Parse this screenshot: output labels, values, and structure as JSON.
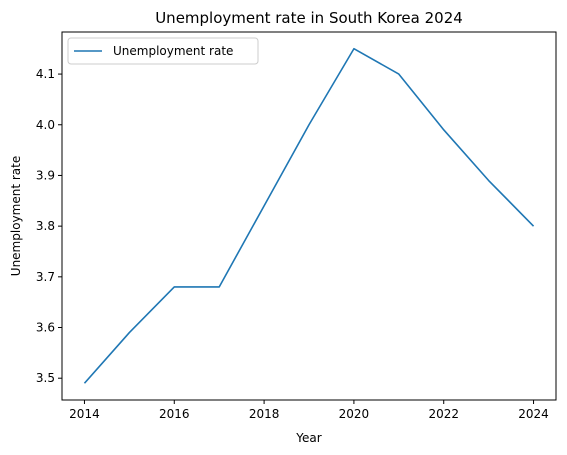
{
  "chart_data": {
    "type": "line",
    "title": "Unemployment rate in South Korea 2024",
    "xlabel": "Year",
    "ylabel": "Unemployment rate",
    "x": [
      2014,
      2015,
      2016,
      2017,
      2018,
      2019,
      2020,
      2021,
      2022,
      2023,
      2024
    ],
    "series": [
      {
        "name": "Unemployment rate",
        "color": "#1f77b4",
        "values": [
          3.49,
          3.59,
          3.68,
          3.68,
          3.84,
          4.0,
          4.15,
          4.1,
          3.99,
          3.89,
          3.8
        ]
      }
    ],
    "xlim": [
      2013.5,
      2024.5
    ],
    "ylim": [
      3.457,
      4.183
    ],
    "xticks": [
      2014,
      2016,
      2018,
      2020,
      2022,
      2024
    ],
    "xtick_labels": [
      "2014",
      "2016",
      "2018",
      "2020",
      "2022",
      "2024"
    ],
    "yticks": [
      3.5,
      3.6,
      3.7,
      3.8,
      3.9,
      4.0,
      4.1
    ],
    "ytick_labels": [
      "3.5",
      "3.6",
      "3.7",
      "3.8",
      "3.9",
      "4.0",
      "4.1"
    ],
    "grid": false,
    "legend": {
      "position": "top-left",
      "entries": [
        "Unemployment rate"
      ]
    }
  }
}
